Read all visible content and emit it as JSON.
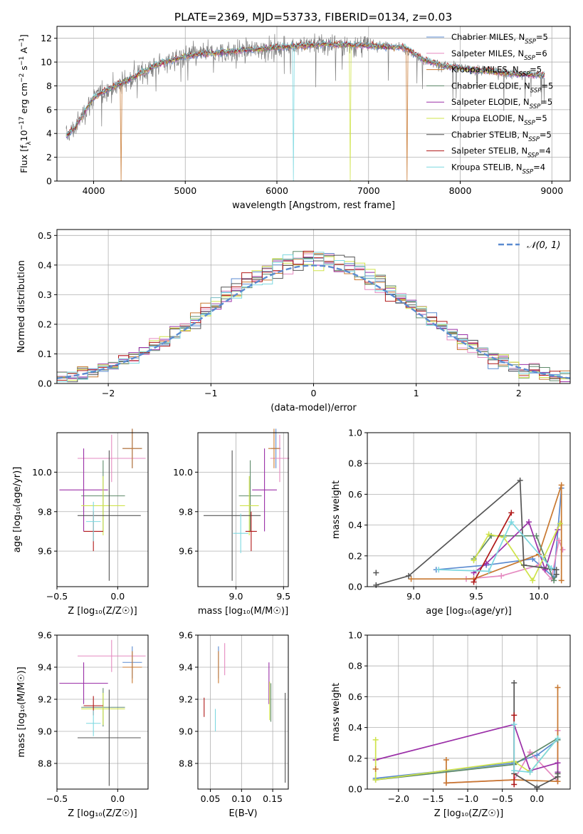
{
  "figure": {
    "title": "PLATE=2369, MJD=53733, FIBERID=0134, z=0.03"
  },
  "models": [
    {
      "name": "Chabrier MILES",
      "nssp": "5",
      "color": "#5b8bd0"
    },
    {
      "name": "Salpeter MILES",
      "nssp": "6",
      "color": "#e58ac0"
    },
    {
      "name": "Kroupa MILES",
      "nssp": "5",
      "color": "#c87830"
    },
    {
      "name": "Chabrier ELODIE",
      "nssp": "5",
      "color": "#5e8a6a"
    },
    {
      "name": "Salpeter ELODIE",
      "nssp": "5",
      "color": "#9b30a8"
    },
    {
      "name": "Kroupa ELODIE",
      "nssp": "5",
      "color": "#cfe34a"
    },
    {
      "name": "Chabrier STELIB",
      "nssp": "5",
      "color": "#555555"
    },
    {
      "name": "Salpeter STELIB",
      "nssp": "4",
      "color": "#b01818"
    },
    {
      "name": "Kroupa STELIB",
      "nssp": "4",
      "color": "#7dd8e0"
    }
  ],
  "chart_data": [
    {
      "id": "spectrum",
      "type": "line",
      "xlabel": "wavelength [Angstrom, rest frame]",
      "ylabel_parts": [
        "Flux [f",
        "λ",
        "10",
        "−17",
        " erg cm",
        "−2",
        " s",
        "−1",
        " A",
        "−1",
        "]"
      ],
      "xlim": [
        3600,
        9200
      ],
      "ylim": [
        0,
        13
      ],
      "xticks": [
        4000,
        5000,
        6000,
        7000,
        8000,
        9000
      ],
      "yticks": [
        0,
        2,
        4,
        6,
        8,
        10,
        12
      ],
      "continuum_x": [
        3700,
        3800,
        3900,
        4000,
        4100,
        4300,
        4500,
        4700,
        5000,
        5200,
        5500,
        5800,
        6100,
        6500,
        7000,
        7400,
        7600,
        7800,
        8200,
        8600,
        8900
      ],
      "continuum_y": [
        3.8,
        4.5,
        5.8,
        7.0,
        7.5,
        8.2,
        9.0,
        9.8,
        10.5,
        10.7,
        10.9,
        11.1,
        11.3,
        11.5,
        11.4,
        11.2,
        10.2,
        9.7,
        9.3,
        9.0,
        8.9
      ],
      "data_x_range": [
        3700,
        8920
      ]
    },
    {
      "id": "residuals",
      "type": "line",
      "xlabel": "(data-model)/error",
      "ylabel": "Normed distribution",
      "xlim": [
        -2.5,
        2.5
      ],
      "ylim": [
        0,
        0.52
      ],
      "xticks": [
        -2,
        -1,
        0,
        1,
        2
      ],
      "xtick_labels": [
        "−2",
        "−1",
        "0",
        "1",
        "2"
      ],
      "yticks": [
        0.0,
        0.1,
        0.2,
        0.3,
        0.4,
        0.5
      ],
      "ytick_labels": [
        "0.0",
        "0.1",
        "0.2",
        "0.3",
        "0.4",
        "0.5"
      ],
      "gaussian_label": "𝒩(0, 1)",
      "gaussian_color": "#5b8bd0",
      "bin_width": 0.1
    },
    {
      "id": "age-vs-Z",
      "type": "scatter",
      "xlabel": "Z [log₁₀(Z/Z☉)]",
      "ylabel": "age  [log₁₀(age/yr)]",
      "xlim": [
        -0.5,
        0.25
      ],
      "ylim": [
        9.42,
        10.2
      ],
      "xticks": [
        -0.5,
        0.0
      ],
      "xtick_labels": [
        "−0.5",
        "0.0"
      ],
      "yticks": [
        9.6,
        9.8,
        10.0
      ],
      "ytick_labels": [
        "9.6",
        "9.8",
        "10.0"
      ],
      "points": [
        {
          "m": 0,
          "x": 0.12,
          "xe": 0.08,
          "y": 10.12,
          "ye": 0.1
        },
        {
          "m": 1,
          "x": -0.05,
          "xe": 0.28,
          "y": 10.07,
          "ye": 0.12
        },
        {
          "m": 2,
          "x": 0.12,
          "xe": 0.08,
          "y": 10.12,
          "ye": 0.1
        },
        {
          "m": 3,
          "x": -0.12,
          "xe": 0.18,
          "y": 9.88,
          "ye": 0.18
        },
        {
          "m": 4,
          "x": -0.28,
          "xe": 0.2,
          "y": 9.91,
          "ye": 0.21
        },
        {
          "m": 5,
          "x": -0.12,
          "xe": 0.18,
          "y": 9.83,
          "ye": 0.15
        },
        {
          "m": 6,
          "x": -0.07,
          "xe": 0.26,
          "y": 9.78,
          "ye": 0.33
        },
        {
          "m": 7,
          "x": -0.2,
          "xe": 0.08,
          "y": 9.7,
          "ye": 0.1
        },
        {
          "m": 8,
          "x": -0.2,
          "xe": 0.06,
          "y": 9.75,
          "ye": 0.1
        }
      ]
    },
    {
      "id": "age-vs-mass",
      "type": "scatter",
      "xlabel": "mass [log₁₀(M/M☉)]",
      "ylabel": "",
      "xlim": [
        8.6,
        9.55
      ],
      "ylim": [
        9.42,
        10.2
      ],
      "xticks": [
        9.0,
        9.5
      ],
      "xtick_labels": [
        "9.0",
        "9.5"
      ],
      "yticks": [
        9.6,
        9.8,
        10.0
      ],
      "ytick_labels": [
        "9.6",
        "9.8",
        "10.0"
      ],
      "points": [
        {
          "m": 0,
          "x": 9.42,
          "xe": 0.05,
          "y": 10.12,
          "ye": 0.1
        },
        {
          "m": 1,
          "x": 9.46,
          "xe": 0.1,
          "y": 10.07,
          "ye": 0.12
        },
        {
          "m": 2,
          "x": 9.4,
          "xe": 0.06,
          "y": 10.12,
          "ye": 0.1
        },
        {
          "m": 3,
          "x": 9.15,
          "xe": 0.12,
          "y": 9.88,
          "ye": 0.18
        },
        {
          "m": 4,
          "x": 9.3,
          "xe": 0.13,
          "y": 9.91,
          "ye": 0.21
        },
        {
          "m": 5,
          "x": 9.14,
          "xe": 0.1,
          "y": 9.83,
          "ye": 0.15
        },
        {
          "m": 6,
          "x": 8.96,
          "xe": 0.3,
          "y": 9.78,
          "ye": 0.33
        },
        {
          "m": 7,
          "x": 9.16,
          "xe": 0.06,
          "y": 9.7,
          "ye": 0.1
        },
        {
          "m": 8,
          "x": 9.05,
          "xe": 0.08,
          "y": 9.69,
          "ye": 0.1
        }
      ]
    },
    {
      "id": "mass-vs-Z",
      "type": "scatter",
      "xlabel": "Z [log₁₀(Z/Z☉)]",
      "ylabel": "mass [log₁₀(M/M☉)]",
      "xlim": [
        -0.5,
        0.25
      ],
      "ylim": [
        8.64,
        9.6
      ],
      "xticks": [
        -0.5,
        0.0
      ],
      "xtick_labels": [
        "−0.5",
        "0.0"
      ],
      "yticks": [
        8.8,
        9.0,
        9.2,
        9.4,
        9.6
      ],
      "ytick_labels": [
        "8.8",
        "9.0",
        "9.2",
        "9.4",
        "9.6"
      ],
      "points": [
        {
          "m": 0,
          "x": 0.12,
          "xe": 0.08,
          "y": 9.43,
          "ye": 0.1
        },
        {
          "m": 1,
          "x": -0.05,
          "xe": 0.28,
          "y": 9.47,
          "ye": 0.1
        },
        {
          "m": 2,
          "x": 0.12,
          "xe": 0.08,
          "y": 9.4,
          "ye": 0.1
        },
        {
          "m": 3,
          "x": -0.12,
          "xe": 0.18,
          "y": 9.15,
          "ye": 0.12
        },
        {
          "m": 4,
          "x": -0.28,
          "xe": 0.2,
          "y": 9.3,
          "ye": 0.13
        },
        {
          "m": 5,
          "x": -0.12,
          "xe": 0.18,
          "y": 9.14,
          "ye": 0.1
        },
        {
          "m": 6,
          "x": -0.07,
          "xe": 0.26,
          "y": 8.96,
          "ye": 0.3
        },
        {
          "m": 7,
          "x": -0.2,
          "xe": 0.08,
          "y": 9.16,
          "ye": 0.06
        },
        {
          "m": 8,
          "x": -0.2,
          "xe": 0.06,
          "y": 9.05,
          "ye": 0.08
        }
      ]
    },
    {
      "id": "mass-vs-ebv",
      "type": "scatter",
      "xlabel": "E(B-V)",
      "ylabel": "",
      "xlim": [
        0.03,
        0.175
      ],
      "ylim": [
        8.64,
        9.6
      ],
      "xticks": [
        0.05,
        0.1,
        0.15
      ],
      "xtick_labels": [
        "0.05",
        "0.10",
        "0.15"
      ],
      "yticks": [
        8.8,
        9.0,
        9.2,
        9.4,
        9.6
      ],
      "ytick_labels": [
        "8.8",
        "9.0",
        "9.2",
        "9.4",
        "9.6"
      ],
      "points": [
        {
          "m": 0,
          "x": 0.063,
          "xe": 0.0,
          "y": 9.43,
          "ye": 0.1
        },
        {
          "m": 1,
          "x": 0.073,
          "xe": 0.0,
          "y": 9.45,
          "ye": 0.1
        },
        {
          "m": 2,
          "x": 0.063,
          "xe": 0.0,
          "y": 9.4,
          "ye": 0.1
        },
        {
          "m": 3,
          "x": 0.147,
          "xe": 0.0,
          "y": 9.18,
          "ye": 0.12
        },
        {
          "m": 4,
          "x": 0.144,
          "xe": 0.0,
          "y": 9.3,
          "ye": 0.13
        },
        {
          "m": 5,
          "x": 0.145,
          "xe": 0.0,
          "y": 9.19,
          "ye": 0.12
        },
        {
          "m": 6,
          "x": 0.17,
          "xe": 0.0,
          "y": 8.96,
          "ye": 0.28
        },
        {
          "m": 7,
          "x": 0.04,
          "xe": 0.0,
          "y": 9.15,
          "ye": 0.06
        },
        {
          "m": 8,
          "x": 0.058,
          "xe": 0.0,
          "y": 9.07,
          "ye": 0.07
        }
      ]
    },
    {
      "id": "mass-weight-vs-age",
      "type": "line",
      "xlabel": "age  [log₁₀(age/yr)]",
      "ylabel": "mass weight",
      "xlim": [
        8.63,
        10.25
      ],
      "ylim": [
        0.0,
        1.0
      ],
      "xticks": [
        9.0,
        9.5,
        10.0
      ],
      "xtick_labels": [
        "9.0",
        "9.5",
        "10.0"
      ],
      "yticks": [
        0.0,
        0.2,
        0.4,
        0.6,
        0.8,
        1.0
      ],
      "ytick_labels": [
        "0.0",
        "0.2",
        "0.4",
        "0.6",
        "0.8",
        "1.0"
      ],
      "series": [
        {
          "m": 0,
          "x": [
            9.18,
            9.58,
            9.95,
            10.12,
            10.18
          ],
          "y": [
            0.11,
            0.14,
            0.18,
            0.06,
            0.64
          ]
        },
        {
          "m": 1,
          "x": [
            9.42,
            9.7,
            10.0,
            10.1,
            10.16,
            10.19
          ],
          "y": [
            0.05,
            0.07,
            0.14,
            0.05,
            0.3,
            0.24
          ]
        },
        {
          "m": 2,
          "x": [
            8.98,
            9.48,
            10.0,
            10.18,
            10.18
          ],
          "y": [
            0.05,
            0.05,
            0.21,
            0.66,
            0.04
          ]
        },
        {
          "m": 3,
          "x": [
            9.48,
            9.62,
            9.98,
            10.12,
            10.14
          ],
          "y": [
            0.18,
            0.33,
            0.33,
            0.04,
            0.08
          ]
        },
        {
          "m": 4,
          "x": [
            9.48,
            9.58,
            9.92,
            10.05,
            10.15
          ],
          "y": [
            0.09,
            0.15,
            0.42,
            0.11,
            0.37
          ]
        },
        {
          "m": 5,
          "x": [
            9.48,
            9.6,
            9.72,
            9.95,
            10.17
          ],
          "y": [
            0.17,
            0.34,
            0.32,
            0.04,
            0.41
          ]
        },
        {
          "m": 6,
          "x": [
            8.7,
            8.96,
            9.85,
            9.88,
            10.14,
            10.14
          ],
          "y": [
            0.01,
            0.07,
            0.69,
            0.14,
            0.11,
            0.08
          ]
        },
        {
          "m": 7,
          "x": [
            9.48,
            9.78
          ],
          "y": [
            0.03,
            0.48
          ]
        },
        {
          "m": 8,
          "x": [
            9.2,
            9.6,
            9.78,
            10.1
          ],
          "y": [
            0.11,
            0.1,
            0.42,
            0.12
          ]
        }
      ],
      "extra_marker": {
        "m": 6,
        "x": 8.7,
        "y": 0.09
      }
    },
    {
      "id": "mass-weight-vs-Z",
      "type": "line",
      "xlabel": "Z [log₁₀(Z/Z☉)]",
      "ylabel": "mass weight",
      "xlim": [
        -2.45,
        0.48
      ],
      "ylim": [
        0.0,
        1.0
      ],
      "xticks": [
        -2.0,
        -1.5,
        -1.0,
        -0.5,
        0.0
      ],
      "xtick_labels": [
        "−2.0",
        "−1.5",
        "−1.0",
        "−0.5",
        "0.0"
      ],
      "yticks": [
        0.0,
        0.2,
        0.4,
        0.6,
        0.8,
        1.0
      ],
      "ytick_labels": [
        "0.0",
        "0.2",
        "0.4",
        "0.6",
        "0.8",
        "1.0"
      ],
      "series": [
        {
          "m": 0,
          "x": [
            -2.33,
            -1.31,
            -0.33,
            0.0,
            0.3
          ],
          "y": [
            0.07,
            0.12,
            0.17,
            0.22,
            0.32
          ]
        },
        {
          "m": 1,
          "x": [
            -1.31,
            -0.33,
            -0.1,
            0.3,
            0.3
          ],
          "y": [
            0.04,
            0.06,
            0.24,
            0.05,
            0.38
          ]
        },
        {
          "m": 2,
          "x": [
            -1.31,
            -1.31,
            -0.33,
            0.3,
            0.3
          ],
          "y": [
            0.19,
            0.04,
            0.06,
            0.05,
            0.66
          ]
        },
        {
          "m": 3,
          "x": [
            -2.33,
            -0.33,
            0.3,
            0.3
          ],
          "y": [
            0.06,
            0.16,
            0.33,
            0.32
          ]
        },
        {
          "m": 4,
          "x": [
            -2.33,
            -0.33,
            -0.1,
            0.3,
            0.3
          ],
          "y": [
            0.19,
            0.42,
            0.12,
            0.17,
            0.11
          ]
        },
        {
          "m": 5,
          "x": [
            -2.33,
            -2.33,
            -0.33,
            -0.1,
            0.3
          ],
          "y": [
            0.32,
            0.06,
            0.18,
            0.11,
            0.33
          ]
        },
        {
          "m": 6,
          "x": [
            -0.33,
            -0.33,
            0.0,
            0.3,
            0.3
          ],
          "y": [
            0.69,
            0.1,
            0.01,
            0.08,
            0.1
          ]
        },
        {
          "m": 7,
          "x": [
            -0.33,
            -0.33
          ],
          "y": [
            0.48,
            0.03
          ]
        },
        {
          "m": 8,
          "x": [
            -0.33,
            -0.33,
            -0.1,
            0.3
          ],
          "y": [
            0.42,
            0.12,
            0.11,
            0.33
          ]
        }
      ],
      "extra_marker": {
        "m": 2,
        "x": -2.33,
        "y": 0.13
      }
    }
  ]
}
